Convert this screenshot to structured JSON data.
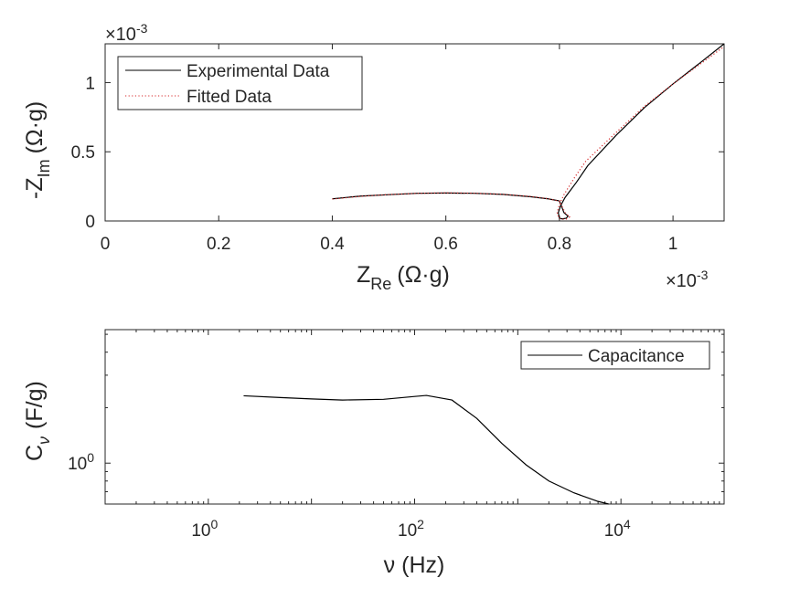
{
  "chart_data": [
    {
      "type": "line",
      "xlabel_main": "Z",
      "xlabel_sub": "Re",
      "xlabel_unit": "(Ω·g)",
      "ylabel_main": "-Z",
      "ylabel_sub": "Im",
      "ylabel_unit": "(Ω·g)",
      "x_exponent_label": "×10",
      "x_exponent_power": "-3",
      "y_exponent_label": "×10",
      "y_exponent_power": "-3",
      "xlim": [
        0,
        0.00109
      ],
      "ylim": [
        0,
        0.00128
      ],
      "xticks": [
        0,
        0.0002,
        0.0004,
        0.0006,
        0.0008,
        0.001
      ],
      "xtick_labels": [
        "0",
        "0.2",
        "0.4",
        "0.6",
        "0.8",
        "1"
      ],
      "yticks": [
        0,
        0.0005,
        0.001
      ],
      "ytick_labels": [
        "0",
        "0.5",
        "1"
      ],
      "legend_position": "top-left",
      "series": [
        {
          "name": "Experimental Data",
          "color": "#000000",
          "style": "solid",
          "x": [
            0.0004,
            0.00045,
            0.0005,
            0.00055,
            0.0006,
            0.00065,
            0.0007,
            0.00075,
            0.00078,
            0.0008,
            0.000808,
            0.000815,
            0.000812,
            0.000805,
            0.0008,
            0.000798,
            0.000802,
            0.00081,
            0.00083,
            0.00085,
            0.0009,
            0.00095,
            0.001,
            0.00105,
            0.00109
          ],
          "y": [
            0.00016,
            0.00018,
            0.00019,
            0.0002,
            0.000202,
            0.0002,
            0.000192,
            0.000175,
            0.00016,
            0.000145,
            6e-05,
            3.5e-05,
            2e-05,
            1.5e-05,
            2e-05,
            6e-05,
            0.00011,
            0.00017,
            0.00028,
            0.0004,
            0.00062,
            0.00082,
            0.00099,
            0.00115,
            0.00128
          ]
        },
        {
          "name": "Fitted Data",
          "color": "#d62728",
          "style": "dotted",
          "x": [
            0.0004,
            0.00045,
            0.0005,
            0.00055,
            0.0006,
            0.00065,
            0.0007,
            0.00075,
            0.00078,
            0.0008,
            0.00081,
            0.000818,
            0.000812,
            0.000804,
            0.000799,
            0.000796,
            0.0008,
            0.000808,
            0.000826,
            0.000846,
            0.0009,
            0.00095,
            0.001,
            0.00105,
            0.00109
          ],
          "y": [
            0.000158,
            0.000178,
            0.000191,
            0.0002,
            0.000203,
            0.000201,
            0.000193,
            0.000177,
            0.000161,
            0.000143,
            6e-05,
            3e-05,
            1.4e-05,
            1.2e-05,
            2.2e-05,
            6e-05,
            0.00012,
            0.00019,
            0.00031,
            0.00043,
            0.00064,
            0.00083,
            0.00099,
            0.00114,
            0.00126
          ]
        }
      ]
    },
    {
      "type": "line",
      "xscale": "log",
      "yscale": "log",
      "xlabel": "ν (Hz)",
      "ylabel_main": "C",
      "ylabel_sub": "ν",
      "ylabel_unit": "(F/g)",
      "xlim": [
        0.1,
        100000
      ],
      "ylim": [
        0.6,
        5.3
      ],
      "xticks": [
        1,
        100,
        10000
      ],
      "xtick_base": "10",
      "xtick_powers": [
        "0",
        "2",
        "4"
      ],
      "yticks": [
        1
      ],
      "ytick_base": "10",
      "ytick_powers": [
        "0"
      ],
      "legend_position": "top-right",
      "series": [
        {
          "name": "Capacitance",
          "color": "#000000",
          "x": [
            2.2,
            5,
            10,
            20,
            50,
            100,
            130,
            230,
            400,
            700,
            1200,
            2000,
            3500,
            6000,
            7600
          ],
          "y": [
            2.32,
            2.27,
            2.23,
            2.2,
            2.22,
            2.3,
            2.33,
            2.2,
            1.75,
            1.28,
            0.98,
            0.8,
            0.69,
            0.62,
            0.6
          ]
        }
      ]
    }
  ]
}
